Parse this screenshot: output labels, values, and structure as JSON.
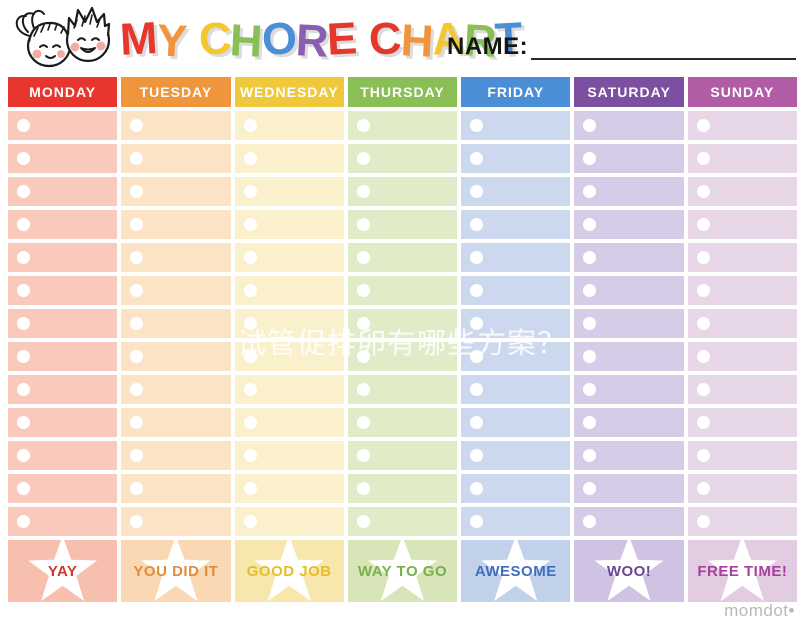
{
  "title": {
    "words": [
      {
        "letters": [
          {
            "ch": "M",
            "color": "#e5372c"
          },
          {
            "ch": "Y",
            "color": "#f0953d"
          }
        ]
      },
      {
        "letters": [
          {
            "ch": "C",
            "color": "#f2c72f"
          },
          {
            "ch": "H",
            "color": "#8abf55"
          },
          {
            "ch": "O",
            "color": "#4a8ed6"
          },
          {
            "ch": "R",
            "color": "#8a5fb0"
          },
          {
            "ch": "E",
            "color": "#e5372c"
          }
        ]
      },
      {
        "letters": [
          {
            "ch": "C",
            "color": "#e5372c"
          },
          {
            "ch": "H",
            "color": "#f0953d"
          },
          {
            "ch": "A",
            "color": "#f2c72f"
          },
          {
            "ch": "R",
            "color": "#8abf55"
          },
          {
            "ch": "T",
            "color": "#4a8ed6"
          }
        ]
      }
    ]
  },
  "name": {
    "label": "NAME:"
  },
  "table": {
    "row_count": 13,
    "days": [
      {
        "label": "MONDAY",
        "header_color": "#e8362e",
        "cell_color": "#f9cabb",
        "footer_color": "#f7c0ae",
        "footer_label": "YAY",
        "footer_text_color": "#cc3a2f"
      },
      {
        "label": "TUESDAY",
        "header_color": "#ef963d",
        "cell_color": "#fce3c5",
        "footer_color": "#fad8b3",
        "footer_label": "YOU DID IT",
        "footer_text_color": "#df8c3d"
      },
      {
        "label": "WEDNESDAY",
        "header_color": "#f0c83c",
        "cell_color": "#faf0cc",
        "footer_color": "#f8e7ad",
        "footer_label": "GOOD JOB",
        "footer_text_color": "#e5bd2b"
      },
      {
        "label": "THURSDAY",
        "header_color": "#8abf55",
        "cell_color": "#e0ebc8",
        "footer_color": "#d8e5b9",
        "footer_label": "WAY TO GO",
        "footer_text_color": "#76b14a"
      },
      {
        "label": "FRIDAY",
        "header_color": "#4a8ed6",
        "cell_color": "#ccd8ee",
        "footer_color": "#c2d1ea",
        "footer_label": "AWESOME",
        "footer_text_color": "#3e6fc1"
      },
      {
        "label": "SATURDAY",
        "header_color": "#7d4fa0",
        "cell_color": "#d6cce7",
        "footer_color": "#cfc2e2",
        "footer_label": "WOO!",
        "footer_text_color": "#6a4596"
      },
      {
        "label": "SUNDAY",
        "header_color": "#b25ca6",
        "cell_color": "#e8d7e9",
        "footer_color": "#e1cce1",
        "footer_label": "FREE TIME!",
        "footer_text_color": "#a8409b"
      }
    ]
  },
  "watermark": {
    "text": "试管促排卵有哪些方案？"
  },
  "branding": {
    "logo": "momdot•"
  }
}
